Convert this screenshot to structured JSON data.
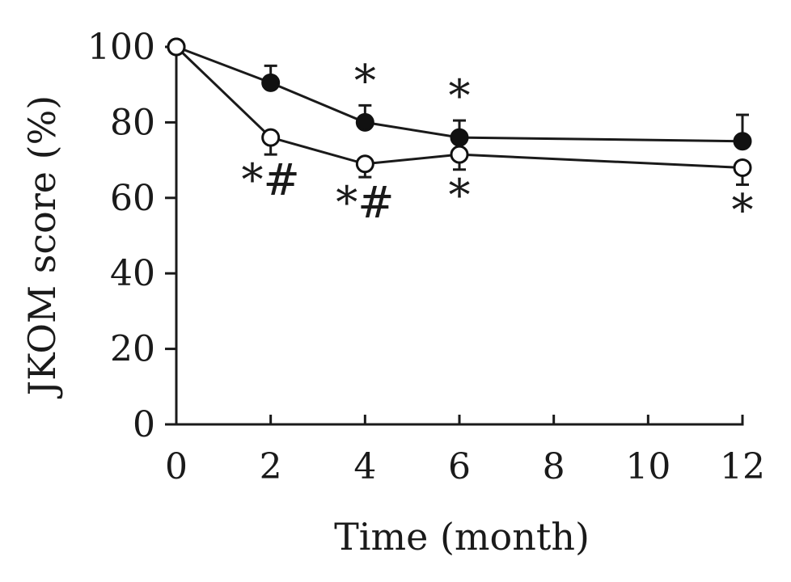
{
  "chart_data": {
    "type": "line",
    "title": "",
    "xlabel": "Time (month)",
    "ylabel": "JKOM score (%)",
    "xlim": [
      0,
      12
    ],
    "ylim": [
      0,
      100
    ],
    "x_ticks": [
      0,
      2,
      4,
      6,
      8,
      10,
      12
    ],
    "y_ticks": [
      0,
      20,
      40,
      60,
      80,
      100
    ],
    "grid": false,
    "series": [
      {
        "name": "filled",
        "marker": "filled-circle",
        "color": "#111111",
        "points": [
          {
            "x": 0,
            "y": 100,
            "err": 0,
            "annotation": ""
          },
          {
            "x": 2,
            "y": 90.5,
            "err": 4.5,
            "annotation": ""
          },
          {
            "x": 4,
            "y": 80,
            "err": 4.5,
            "annotation": "*"
          },
          {
            "x": 6,
            "y": 76,
            "err": 4.5,
            "annotation": "*"
          },
          {
            "x": 12,
            "y": 75,
            "err": 7,
            "annotation": ""
          }
        ]
      },
      {
        "name": "open",
        "marker": "open-circle",
        "color": "#111111",
        "points": [
          {
            "x": 0,
            "y": 100,
            "err": 0,
            "annotation": ""
          },
          {
            "x": 2,
            "y": 76,
            "err": 4.5,
            "annotation": "*#"
          },
          {
            "x": 4,
            "y": 69,
            "err": 3.5,
            "annotation": "*#"
          },
          {
            "x": 6,
            "y": 71.5,
            "err": 4,
            "annotation": "*"
          },
          {
            "x": 12,
            "y": 68,
            "err": 4.5,
            "annotation": "*"
          }
        ]
      }
    ]
  }
}
